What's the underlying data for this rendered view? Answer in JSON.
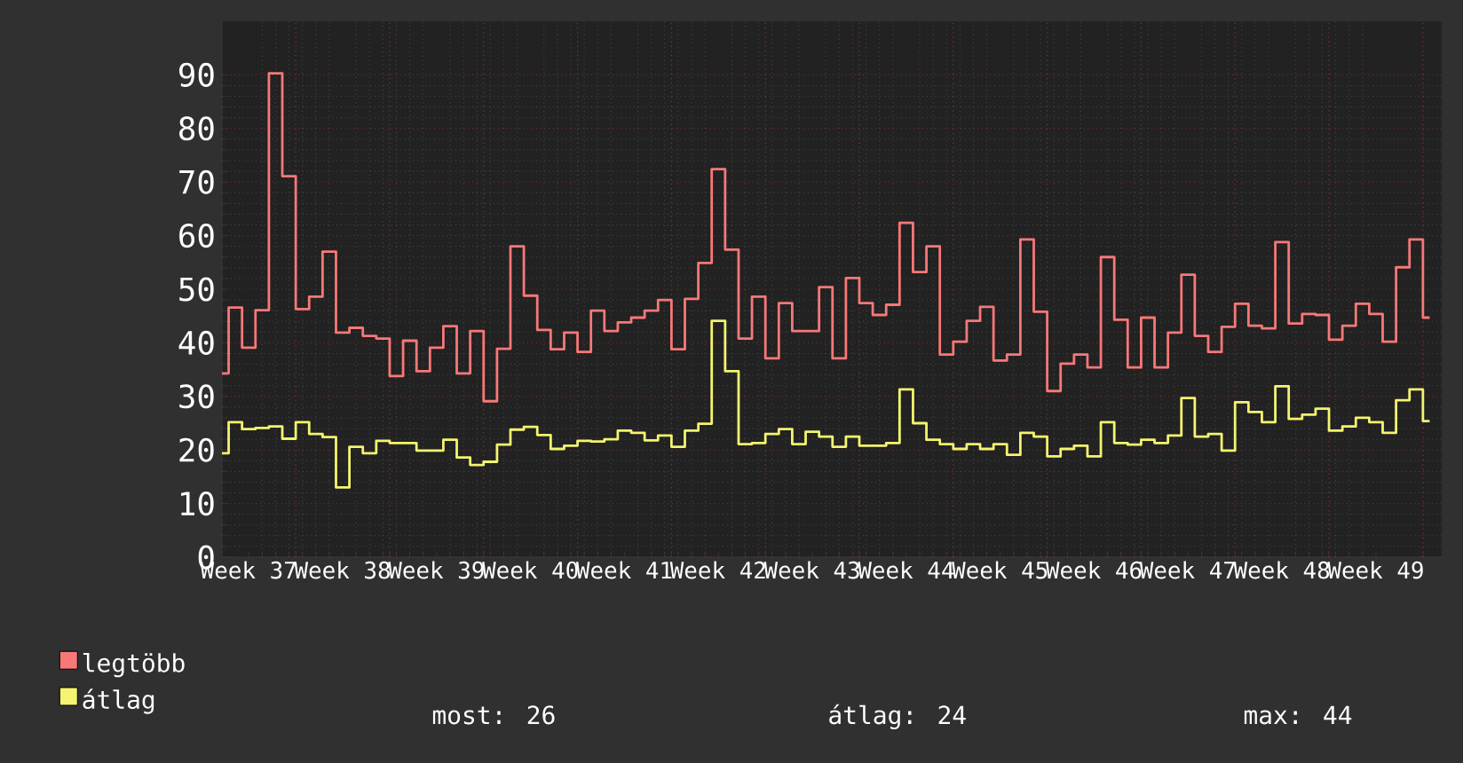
{
  "chart_data": {
    "type": "step",
    "categories": [
      null,
      null,
      "Week 37",
      null,
      null,
      null,
      null,
      null,
      null,
      "Week 38",
      null,
      null,
      null,
      null,
      null,
      null,
      "Week 39",
      null,
      null,
      null,
      null,
      null,
      null,
      "Week 40",
      null,
      null,
      null,
      null,
      null,
      null,
      "Week 41",
      null,
      null,
      null,
      null,
      null,
      null,
      "Week 42",
      null,
      null,
      null,
      null,
      null,
      null,
      "Week 43",
      null,
      null,
      null,
      null,
      null,
      null,
      "Week 44",
      null,
      null,
      null,
      null,
      null,
      null,
      "Week 45",
      null,
      null,
      null,
      null,
      null,
      null,
      "Week 46",
      null,
      null,
      null,
      null,
      null,
      null,
      "Week 47",
      null,
      null,
      null,
      null,
      null,
      null,
      "Week 48",
      null,
      null,
      null,
      null,
      null,
      null,
      "Week 49",
      null,
      null,
      null,
      null
    ],
    "series": [
      {
        "name": "legtöbb",
        "color": "#f87878",
        "values": [
          34.3,
          46.6,
          39.1,
          46.1,
          90.3,
          71.1,
          46.3,
          48.6,
          57,
          41.9,
          42.8,
          41.3,
          40.8,
          33.8,
          40.4,
          34.7,
          39.1,
          43.1,
          34.3,
          42.2,
          29.1,
          38.9,
          58,
          48.8,
          42.4,
          38.8,
          41.9,
          38.3,
          46,
          42.2,
          43.8,
          44.7,
          46,
          48,
          38.8,
          48.2,
          54.9,
          72.4,
          57.4,
          40.8,
          48.6,
          37.1,
          47.4,
          42.2,
          42.2,
          50.4,
          37.1,
          52.1,
          47.4,
          45.2,
          47.1,
          62.4,
          53.2,
          58,
          37.8,
          40.2,
          44.1,
          46.7,
          36.7,
          37.8,
          59.3,
          45.8,
          31,
          36.1,
          37.8,
          35.4,
          56,
          44.3,
          35.4,
          44.7,
          35.4,
          41.9,
          52.7,
          41.3,
          38.3,
          43,
          47.3,
          43.2,
          42.7,
          58.8,
          43.6,
          45.4,
          45.2,
          40.6,
          43.2,
          47.3,
          45.4,
          40.2,
          54.1,
          59.3,
          44.7
        ]
      },
      {
        "name": "átlag",
        "color": "#f4f470",
        "values": [
          19.4,
          25.2,
          23.9,
          24.1,
          24.4,
          22.1,
          25.2,
          23,
          22.4,
          13,
          20.6,
          19.4,
          21.7,
          21.3,
          21.3,
          19.9,
          19.9,
          21.9,
          18.6,
          17.2,
          17.8,
          21,
          23.8,
          24.3,
          22.8,
          20.2,
          20.8,
          21.7,
          21.6,
          22,
          23.6,
          23.2,
          21.8,
          22.7,
          20.6,
          23.6,
          24.9,
          44.1,
          34.7,
          21.1,
          21.3,
          23,
          23.9,
          21.1,
          23.4,
          22.5,
          20.6,
          22.5,
          20.8,
          20.8,
          21.3,
          31.3,
          25,
          21.9,
          21.1,
          20.2,
          21.1,
          20.2,
          21.1,
          19.1,
          23.2,
          22.5,
          18.8,
          20.2,
          20.8,
          18.8,
          25.2,
          21.3,
          21,
          21.9,
          21.3,
          22.7,
          29.7,
          22.5,
          23,
          19.9,
          28.9,
          27.1,
          25.2,
          31.9,
          25.8,
          26.6,
          27.7,
          23.6,
          24.4,
          26,
          25.2,
          23.2,
          29.3,
          31.3,
          25.4
        ]
      }
    ],
    "ylim": [
      0,
      100
    ],
    "yticks": [
      0,
      10,
      20,
      30,
      40,
      50,
      60,
      70,
      80,
      90
    ],
    "grid": true,
    "legend": "bottom",
    "annotations": [
      "most: 26",
      "átlag: 24",
      "max: 44"
    ]
  }
}
